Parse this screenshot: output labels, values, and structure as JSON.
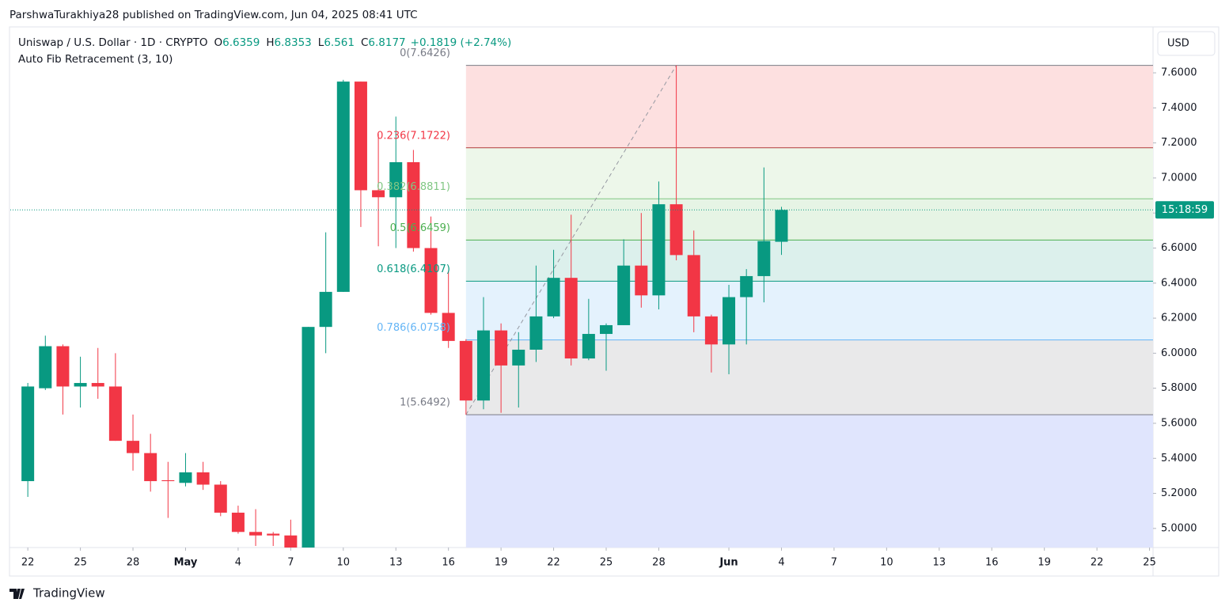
{
  "header": {
    "publisher": "ParshwaTurakhiya28 published on TradingView.com, Jun 04, 2025 08:41 UTC",
    "brand": "TradingView"
  },
  "chart_data": {
    "type": "candlestick",
    "title": "Uniswap / U.S. Dollar · 1D · CRYPTO",
    "ohlc_letters": [
      "O",
      "H",
      "L",
      "C"
    ],
    "change": "+0.1819 (+2.74%)",
    "indicator": "Auto Fib Retracement (3, 10)",
    "currency": "USD",
    "countdown": "15:18:59",
    "up_color": "#089981",
    "down_color": "#f23645",
    "x": [
      0,
      1,
      2,
      3,
      4,
      5,
      6,
      7,
      8,
      9,
      10,
      11,
      12,
      13,
      14,
      15,
      16,
      17,
      18,
      19,
      20,
      21,
      22,
      23,
      24,
      25,
      26,
      27,
      28,
      29,
      30,
      31,
      32,
      33,
      34,
      35,
      36,
      37,
      38,
      39,
      40,
      41,
      42,
      43
    ],
    "open": [
      5.27,
      5.8,
      6.04,
      5.81,
      5.83,
      5.81,
      5.5,
      5.43,
      5.275,
      5.26,
      5.32,
      5.25,
      5.09,
      4.98,
      4.97,
      4.96,
      4.86,
      6.15,
      6.35,
      7.55,
      6.93,
      6.89,
      7.09,
      6.6,
      6.23,
      6.07,
      5.73,
      6.13,
      5.93,
      6.02,
      6.21,
      6.43,
      5.97,
      6.11,
      6.16,
      6.5,
      6.33,
      6.85,
      6.56,
      6.21,
      6.05,
      6.32,
      6.44,
      6.6359
    ],
    "high": [
      5.83,
      6.1,
      6.05,
      5.98,
      6.03,
      6.0,
      5.65,
      5.54,
      5.38,
      5.43,
      5.38,
      5.27,
      5.13,
      5.11,
      4.98,
      5.05,
      6.15,
      6.69,
      7.56,
      7.55,
      7.25,
      7.35,
      7.16,
      6.78,
      6.47,
      6.08,
      6.32,
      6.17,
      6.12,
      6.5,
      6.59,
      6.79,
      6.31,
      6.17,
      6.65,
      6.8,
      6.98,
      7.6426,
      6.7,
      6.22,
      6.39,
      6.48,
      7.06,
      6.8353
    ],
    "low": [
      5.18,
      5.79,
      5.65,
      5.69,
      5.74,
      5.5,
      5.33,
      5.21,
      5.06,
      5.24,
      5.22,
      5.07,
      4.97,
      4.9,
      4.9,
      4.85,
      4.84,
      6.0,
      6.35,
      6.72,
      6.61,
      6.6,
      6.58,
      6.22,
      6.03,
      5.6492,
      5.68,
      5.66,
      5.69,
      5.95,
      6.2,
      5.93,
      5.96,
      5.9,
      6.16,
      6.26,
      6.25,
      6.53,
      6.12,
      5.89,
      5.88,
      6.05,
      6.29,
      6.561
    ],
    "close": [
      5.81,
      6.04,
      5.81,
      5.83,
      5.81,
      5.5,
      5.43,
      5.27,
      5.27,
      5.32,
      5.25,
      5.09,
      4.98,
      4.96,
      4.96,
      4.88,
      6.15,
      6.35,
      7.55,
      6.93,
      6.89,
      7.09,
      6.6,
      6.23,
      6.07,
      5.73,
      6.13,
      5.93,
      6.02,
      6.21,
      6.43,
      5.97,
      6.11,
      6.16,
      6.5,
      6.33,
      6.85,
      6.56,
      6.21,
      6.05,
      6.32,
      6.44,
      6.64,
      6.8177
    ],
    "xlim": [
      -1.0,
      64.2
    ],
    "xticks": [
      {
        "value": 0,
        "label": "22"
      },
      {
        "value": 3,
        "label": "25"
      },
      {
        "value": 6,
        "label": "28"
      },
      {
        "value": 9,
        "label": "May"
      },
      {
        "value": 12,
        "label": "4"
      },
      {
        "value": 15,
        "label": "7"
      },
      {
        "value": 18,
        "label": "10"
      },
      {
        "value": 21,
        "label": "13"
      },
      {
        "value": 24,
        "label": "16"
      },
      {
        "value": 27,
        "label": "19"
      },
      {
        "value": 30,
        "label": "22"
      },
      {
        "value": 33,
        "label": "25"
      },
      {
        "value": 36,
        "label": "28"
      },
      {
        "value": 40,
        "label": "Jun"
      },
      {
        "value": 43,
        "label": "4"
      },
      {
        "value": 46,
        "label": "7"
      },
      {
        "value": 49,
        "label": "10"
      },
      {
        "value": 52,
        "label": "13"
      },
      {
        "value": 55,
        "label": "16"
      },
      {
        "value": 58,
        "label": "19"
      },
      {
        "value": 61,
        "label": "22"
      },
      {
        "value": 64,
        "label": "25"
      }
    ],
    "ylim": [
      4.891,
      7.835
    ],
    "yticks": [
      {
        "value": 5.0,
        "label": "5.0000"
      },
      {
        "value": 5.2,
        "label": "5.2000"
      },
      {
        "value": 5.4,
        "label": "5.4000"
      },
      {
        "value": 5.6,
        "label": "5.6000"
      },
      {
        "value": 5.8,
        "label": "5.8000"
      },
      {
        "value": 6.0,
        "label": "6.0000"
      },
      {
        "value": 6.2,
        "label": "6.2000"
      },
      {
        "value": 6.4,
        "label": "6.4000"
      },
      {
        "value": 6.6,
        "label": "6.6000"
      },
      {
        "value": 6.8,
        "label": "6.8000"
      },
      {
        "value": 7.0,
        "label": "7.0000"
      },
      {
        "value": 7.2,
        "label": "7.2000"
      },
      {
        "value": 7.4,
        "label": "7.4000"
      },
      {
        "value": 7.6,
        "label": "7.6000"
      }
    ],
    "fib": {
      "levels": [
        {
          "value": 7.6426,
          "label": "0(7.6426)"
        },
        {
          "value": 7.1722,
          "label": "0.236(7.1722)"
        },
        {
          "value": 6.8811,
          "label": "0.382(6.8811)"
        },
        {
          "value": 6.6459,
          "label": "0.5(6.6459)"
        },
        {
          "value": 6.4107,
          "label": "0.618(6.4107)"
        },
        {
          "value": 6.0758,
          "label": "0.786(6.0758)"
        },
        {
          "value": 5.6492,
          "label": "1(5.6492)"
        }
      ],
      "line_colors": [
        "#787b86",
        "#b23b3b",
        "#81c784",
        "#4caf50",
        "#089981",
        "#64b5f6",
        "#787b86"
      ],
      "label_colors": [
        "#787b86",
        "#f23645",
        "#81c784",
        "#4caf50",
        "#089981",
        "#64b5f6",
        "#787b86"
      ],
      "zone_colors": [
        "#fde0e0",
        "#edf7ea",
        "#e6f4e5",
        "#dcf0ec",
        "#e4f2fd",
        "#e9e9ea",
        "#e0e5fd"
      ]
    }
  }
}
